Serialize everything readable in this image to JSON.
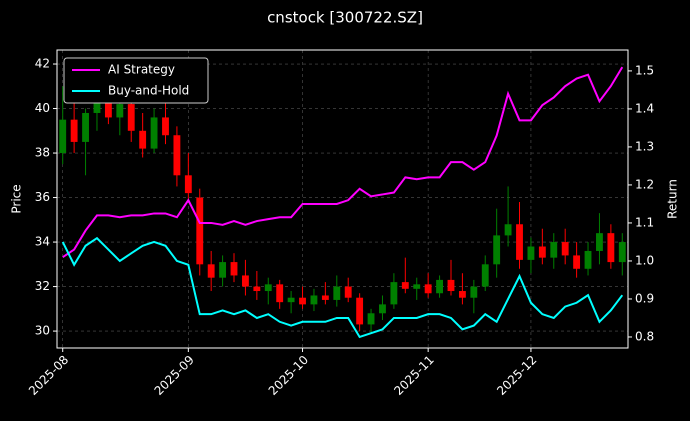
{
  "chart_data": {
    "type": "candlestick",
    "title": "cnstock [300722.SZ]",
    "ylabel": "Price",
    "y2label": "Return",
    "categories": [
      "2025-08",
      null,
      null,
      null,
      null,
      null,
      null,
      null,
      null,
      null,
      null,
      "2025-09",
      null,
      null,
      null,
      null,
      null,
      null,
      null,
      null,
      null,
      "2025-10",
      null,
      null,
      null,
      null,
      null,
      null,
      null,
      null,
      null,
      null,
      "2025-11",
      null,
      null,
      null,
      null,
      null,
      null,
      null,
      null,
      "2025-12",
      null,
      null,
      null,
      null,
      null,
      null,
      null,
      null
    ],
    "candles": {
      "up_color": "#008000",
      "down_color": "#ff0000",
      "open": [
        38,
        39.5,
        38.5,
        39.8,
        40.5,
        39.6,
        40.2,
        39,
        38.2,
        39.6,
        38.8,
        37,
        36,
        33,
        32.4,
        33.1,
        32.5,
        32,
        31.8,
        32.1,
        31.3,
        31.5,
        31.2,
        31.6,
        31.4,
        32,
        31.5,
        30.3,
        30.8,
        31.2,
        32.2,
        31.9,
        32.1,
        31.7,
        32.3,
        31.8,
        31.5,
        32,
        33,
        34.3,
        34.8,
        33.2,
        33.8,
        33.3,
        34,
        33.4,
        32.8,
        33.6,
        34.4,
        33.1
      ],
      "high": [
        41,
        40.5,
        40,
        41.2,
        41,
        40.8,
        40.6,
        39.8,
        40,
        40.4,
        39.2,
        38,
        36.4,
        33.6,
        33.4,
        33.5,
        33.2,
        32.7,
        32.4,
        32.3,
        31.8,
        32,
        31.9,
        32.2,
        32.5,
        32.4,
        31.7,
        31,
        31.6,
        32.6,
        33.3,
        32.4,
        32.6,
        32.5,
        33.2,
        32.6,
        32.3,
        33.4,
        35.5,
        36.5,
        35.8,
        34.2,
        34.6,
        34.4,
        34.6,
        34,
        34,
        35.3,
        34.8,
        34.4
      ],
      "low": [
        37.5,
        38,
        37,
        39,
        39.3,
        38.8,
        38.5,
        37.8,
        38,
        38.4,
        36.5,
        35.8,
        32.5,
        31.8,
        32,
        32.2,
        31.6,
        31.4,
        31.2,
        31,
        30.8,
        31,
        30.9,
        31.2,
        31.1,
        31.3,
        30,
        29.9,
        30.5,
        31,
        31.7,
        31.4,
        31.5,
        31.5,
        31.6,
        31.2,
        30.8,
        31.8,
        32.4,
        33.8,
        32.8,
        32.6,
        33,
        32.8,
        33,
        32.4,
        32.5,
        33,
        32.8,
        32.5
      ],
      "close": [
        39.5,
        38.5,
        39.8,
        40.5,
        39.6,
        40.2,
        39,
        38.2,
        39.6,
        38.8,
        37,
        36.2,
        33,
        32.4,
        33.1,
        32.5,
        32,
        31.8,
        32.1,
        31.3,
        31.5,
        31.2,
        31.6,
        31.4,
        32,
        31.5,
        30.3,
        30.8,
        31.2,
        32.2,
        31.9,
        32.1,
        31.7,
        32.3,
        31.8,
        31.5,
        32,
        33,
        34.3,
        34.8,
        33.2,
        33.8,
        33.3,
        34,
        33.4,
        32.8,
        33.6,
        34.4,
        33.1,
        34
      ]
    },
    "series": [
      {
        "name": "AI Strategy",
        "color": "#ff00ff",
        "axis": "y2",
        "values": [
          1.01,
          1.03,
          1.08,
          1.12,
          1.12,
          1.115,
          1.12,
          1.12,
          1.125,
          1.125,
          1.115,
          1.16,
          1.1,
          1.1,
          1.095,
          1.105,
          1.095,
          1.105,
          1.11,
          1.115,
          1.115,
          1.15,
          1.15,
          1.15,
          1.15,
          1.16,
          1.19,
          1.17,
          1.175,
          1.18,
          1.22,
          1.215,
          1.22,
          1.22,
          1.26,
          1.26,
          1.24,
          1.26,
          1.33,
          1.44,
          1.37,
          1.37,
          1.41,
          1.43,
          1.46,
          1.48,
          1.49,
          1.42,
          1.46,
          1.51
        ]
      },
      {
        "name": "Buy-and-Hold",
        "color": "#00ffff",
        "axis": "y2",
        "values": [
          1.05,
          0.99,
          1.04,
          1.06,
          1.03,
          1,
          1.02,
          1.04,
          1.05,
          1.04,
          1,
          0.99,
          0.86,
          0.86,
          0.87,
          0.86,
          0.87,
          0.85,
          0.86,
          0.84,
          0.83,
          0.84,
          0.84,
          0.84,
          0.85,
          0.85,
          0.8,
          0.81,
          0.82,
          0.85,
          0.85,
          0.85,
          0.86,
          0.86,
          0.85,
          0.82,
          0.83,
          0.86,
          0.84,
          0.9,
          0.96,
          0.89,
          0.86,
          0.85,
          0.88,
          0.89,
          0.91,
          0.84,
          0.87,
          0.91
        ]
      }
    ],
    "ylim": [
      29.24,
      42.63
    ],
    "yticks": [
      30,
      32,
      34,
      36,
      38,
      40,
      42
    ],
    "y2lim": [
      0.771,
      1.555
    ],
    "y2ticks": [
      0.8,
      0.9,
      {
        "value": 1,
        "label": "1.0"
      },
      1.1,
      1.2,
      1.3,
      1.4,
      1.5
    ],
    "grid": true,
    "legend": "upper left"
  }
}
